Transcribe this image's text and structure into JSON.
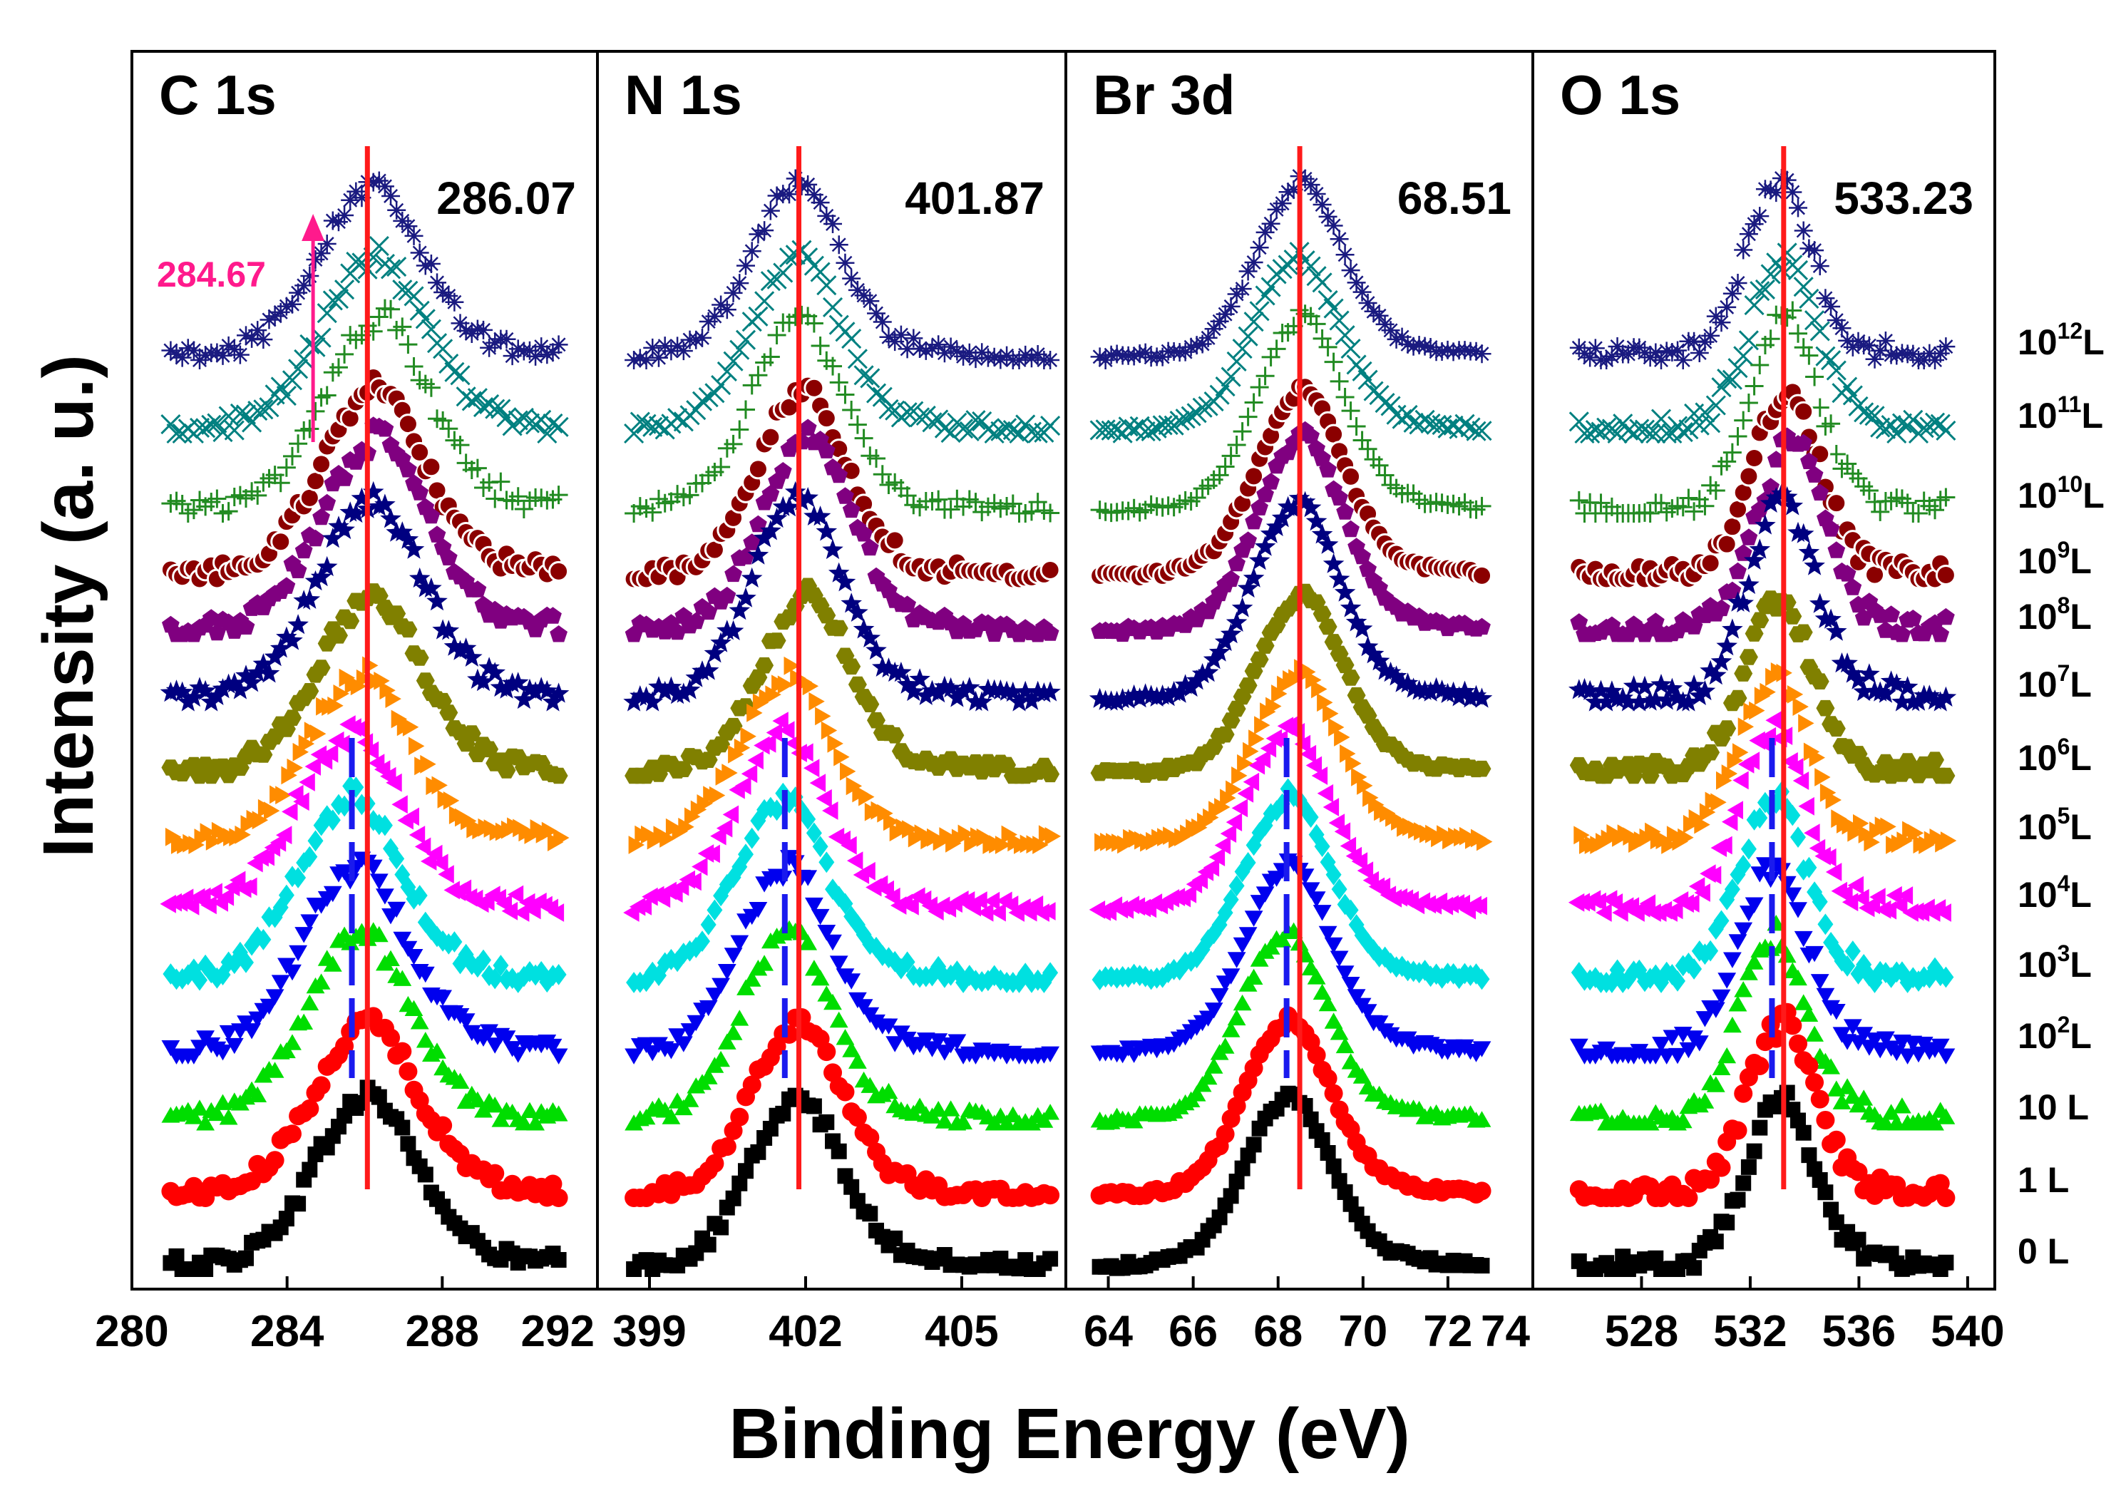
{
  "chart_data": {
    "type": "scatter",
    "xlabel": "Binding Energy (eV)",
    "ylabel": "Intensity (a. u.)",
    "exposures": [
      {
        "base": "0 L"
      },
      {
        "base": "1 L"
      },
      {
        "base": "10 L"
      },
      {
        "base": "10",
        "sup": "2",
        "unit": "L"
      },
      {
        "base": "10",
        "sup": "3",
        "unit": "L"
      },
      {
        "base": "10",
        "sup": "4",
        "unit": "L"
      },
      {
        "base": "10",
        "sup": "5",
        "unit": "L"
      },
      {
        "base": "10",
        "sup": "6",
        "unit": "L"
      },
      {
        "base": "10",
        "sup": "7",
        "unit": "L"
      },
      {
        "base": "10",
        "sup": "8",
        "unit": "L"
      },
      {
        "base": "10",
        "sup": "9",
        "unit": "L"
      },
      {
        "base": "10",
        "sup": "10",
        "unit": "L"
      },
      {
        "base": "10",
        "sup": "11",
        "unit": "L"
      },
      {
        "base": "10",
        "sup": "12",
        "unit": "L"
      }
    ],
    "series_style": [
      {
        "color": "#000000",
        "marker": "square"
      },
      {
        "color": "#ff0000",
        "marker": "circle"
      },
      {
        "color": "#00dd00",
        "marker": "triangle-up"
      },
      {
        "color": "#0000ee",
        "marker": "triangle-down"
      },
      {
        "color": "#00e0e0",
        "marker": "diamond"
      },
      {
        "color": "#ff00ff",
        "marker": "triangle-left"
      },
      {
        "color": "#ff8c00",
        "marker": "triangle-right"
      },
      {
        "color": "#808000",
        "marker": "hexagon"
      },
      {
        "color": "#000080",
        "marker": "star"
      },
      {
        "color": "#800080",
        "marker": "pentagon"
      },
      {
        "color": "#8b0000",
        "marker": "circle-open"
      },
      {
        "color": "#228b22",
        "marker": "plus"
      },
      {
        "color": "#008080",
        "marker": "cross"
      },
      {
        "color": "#1a1a80",
        "marker": "asterisk"
      }
    ],
    "panels": [
      {
        "title": "C 1s",
        "xlim": [
          280,
          292
        ],
        "data_range": [
          281,
          291
        ],
        "ticks": [
          "280",
          "284",
          "288",
          "292"
        ],
        "peak_label": "286.07",
        "peak_line": 286.07,
        "secondary_label": "284.67",
        "low_exposure_peak": 285.67,
        "peak_center_by_series": [
          286.0,
          286.0,
          285.8,
          285.7,
          285.6,
          285.6,
          285.8,
          286.1,
          286.1,
          286.2,
          286.2,
          286.3,
          286.2,
          286.1
        ],
        "peak_width": 1.3,
        "noise": 0.055
      },
      {
        "title": "N 1s",
        "xlim": [
          398,
          407
        ],
        "data_range": [
          398.7,
          406.7
        ],
        "ticks": [
          "399",
          "402",
          "405"
        ],
        "peak_label": "401.87",
        "peak_line": 401.87,
        "low_exposure_peak": 401.6,
        "peak_center_by_series": [
          401.8,
          401.8,
          401.6,
          401.6,
          401.5,
          401.5,
          401.6,
          402.0,
          401.8,
          402.0,
          401.9,
          401.8,
          401.8,
          401.8
        ],
        "peak_width": 0.85,
        "noise": 0.045
      },
      {
        "title": "Br 3d",
        "xlim": [
          63,
          74
        ],
        "data_range": [
          63.8,
          72.8
        ],
        "ticks": [
          "64",
          "66",
          "68",
          "70",
          "72",
          "74"
        ],
        "peak_label": "68.51",
        "peak_line": 68.51,
        "low_exposure_peak": 68.2,
        "peak_center_by_series": [
          68.2,
          68.2,
          68.1,
          68.2,
          68.2,
          68.2,
          68.4,
          68.5,
          68.4,
          68.5,
          68.5,
          68.5,
          68.4,
          68.5
        ],
        "peak_width": 1.0,
        "noise": 0.02
      },
      {
        "title": "O 1s",
        "xlim": [
          524,
          541
        ],
        "data_range": [
          525.7,
          539.2
        ],
        "ticks": [
          "528",
          "532",
          "536",
          "540"
        ],
        "peak_label": "533.23",
        "peak_line": 533.23,
        "low_exposure_peak": 532.8,
        "peak_center_by_series": [
          533.1,
          533.1,
          532.8,
          532.8,
          532.8,
          532.8,
          532.8,
          533.0,
          533.1,
          533.5,
          533.3,
          533.2,
          533.2,
          533.0
        ],
        "peak_width": 1.2,
        "noise": 0.065
      }
    ]
  }
}
